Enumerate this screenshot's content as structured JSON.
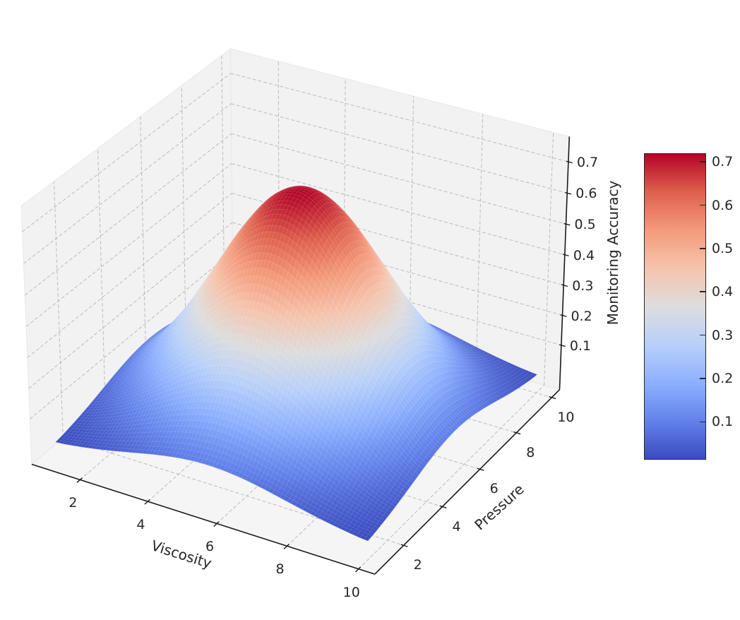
{
  "chart_data": {
    "type": "surface3d",
    "title": "",
    "xlabel": "Viscosity",
    "ylabel": "Pressure",
    "zlabel": "Monitoring Accuracy",
    "x_ticks": [
      2,
      4,
      6,
      8,
      10
    ],
    "y_ticks": [
      2,
      4,
      6,
      8,
      10
    ],
    "z_ticks": [
      0.1,
      0.2,
      0.3,
      0.4,
      0.5,
      0.6,
      0.7
    ],
    "x_axis_range": [
      0.55,
      10.45
    ],
    "y_axis_range": [
      0.55,
      10.45
    ],
    "z_axis_range": [
      -0.05,
      0.78
    ],
    "view": {
      "elev": 30,
      "azim": -60,
      "grid": "dashed",
      "legend": "none"
    },
    "colormap": {
      "name": "coolwarm",
      "vmin": 0.0125,
      "vmax": 0.72,
      "stops": [
        "#3b4cc0",
        "#6282ea",
        "#8db0fe",
        "#b8d0f9",
        "#dddddd",
        "#f5c4ad",
        "#f49a7b",
        "#de604d",
        "#b40426"
      ]
    },
    "colorbar": {
      "ticks": [
        0.1,
        0.2,
        0.3,
        0.4,
        0.5,
        0.6,
        0.7
      ]
    },
    "surface": {
      "description": "Gaussian peak: z = 0.72*exp(-((x-5.5)^2+(y-5.5)^2)/10); max 0.72 at (5.5,5.5), min ~0.0125 at domain corners; domain x,y in [1,10]",
      "x": [
        1,
        1.75,
        2.5,
        3.25,
        4,
        4.75,
        5.5,
        6.25,
        7,
        7.75,
        8.5,
        9.25,
        10
      ],
      "y": [
        1,
        1.75,
        2.5,
        3.25,
        4,
        4.75,
        5.5,
        6.25,
        7,
        7.75,
        8.5,
        9.25,
        10
      ],
      "z": [
        [
          0.0125,
          0.0233,
          0.0386,
          0.0573,
          0.0759,
          0.0898,
          0.095,
          0.0898,
          0.0759,
          0.0573,
          0.0386,
          0.0233,
          0.0125
        ],
        [
          0.0233,
          0.0432,
          0.0717,
          0.1064,
          0.1409,
          0.1668,
          0.1764,
          0.1668,
          0.1409,
          0.1064,
          0.0717,
          0.0432,
          0.0233
        ],
        [
          0.0386,
          0.0717,
          0.119,
          0.1765,
          0.2337,
          0.2767,
          0.2927,
          0.2767,
          0.2337,
          0.1765,
          0.119,
          0.0717,
          0.0386
        ],
        [
          0.0573,
          0.1064,
          0.1765,
          0.2616,
          0.3465,
          0.4103,
          0.434,
          0.4103,
          0.3465,
          0.2616,
          0.1765,
          0.1064,
          0.0573
        ],
        [
          0.0759,
          0.1409,
          0.2337,
          0.3465,
          0.4591,
          0.5435,
          0.5749,
          0.5435,
          0.4591,
          0.3465,
          0.2337,
          0.1409,
          0.0759
        ],
        [
          0.0898,
          0.1668,
          0.2767,
          0.4103,
          0.5435,
          0.6434,
          0.6806,
          0.6434,
          0.5435,
          0.4103,
          0.2767,
          0.1668,
          0.0898
        ],
        [
          0.095,
          0.1764,
          0.2927,
          0.434,
          0.5749,
          0.6806,
          0.72,
          0.6806,
          0.5749,
          0.434,
          0.2927,
          0.1764,
          0.095
        ],
        [
          0.0898,
          0.1668,
          0.2767,
          0.4103,
          0.5435,
          0.6434,
          0.6806,
          0.6434,
          0.5435,
          0.4103,
          0.2767,
          0.1668,
          0.0898
        ],
        [
          0.0759,
          0.1409,
          0.2337,
          0.3465,
          0.4591,
          0.5435,
          0.5749,
          0.5435,
          0.4591,
          0.3465,
          0.2337,
          0.1409,
          0.0759
        ],
        [
          0.0573,
          0.1064,
          0.1765,
          0.2616,
          0.3465,
          0.4103,
          0.434,
          0.4103,
          0.3465,
          0.2616,
          0.1765,
          0.1064,
          0.0573
        ],
        [
          0.0386,
          0.0717,
          0.119,
          0.1765,
          0.2337,
          0.2767,
          0.2927,
          0.2767,
          0.2337,
          0.1765,
          0.119,
          0.0717,
          0.0386
        ],
        [
          0.0233,
          0.0432,
          0.0717,
          0.1064,
          0.1409,
          0.1668,
          0.1764,
          0.1668,
          0.1409,
          0.1064,
          0.0717,
          0.0432,
          0.0233
        ],
        [
          0.0125,
          0.0233,
          0.0386,
          0.0573,
          0.0759,
          0.0898,
          0.095,
          0.0898,
          0.0759,
          0.0573,
          0.0386,
          0.0233,
          0.0125
        ]
      ]
    }
  },
  "style": {
    "background": "#ffffff",
    "pane": "#f2f2f3",
    "floor": "#f5f5f6",
    "pane_edge": "#e8e8ea",
    "grid": "#bbbbbd",
    "spine": "#1a1a1a",
    "text": "#262626"
  }
}
